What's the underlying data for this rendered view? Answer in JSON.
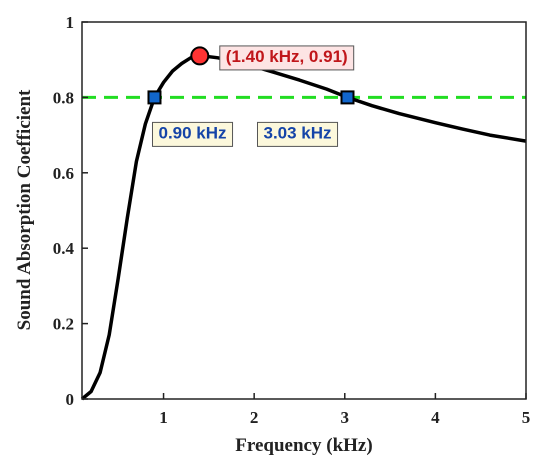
{
  "chart_data": {
    "type": "line",
    "xlabel": "Frequency (kHz)",
    "ylabel": "Sound Absorption Coefficient",
    "xlim": [
      0.1,
      5
    ],
    "ylim": [
      0,
      1
    ],
    "xticks": [
      1,
      2,
      3,
      4,
      5
    ],
    "yticks": [
      0,
      0.2,
      0.4,
      0.6,
      0.8,
      1
    ],
    "xtick_labels": [
      "1",
      "2",
      "3",
      "4",
      "5"
    ],
    "ytick_labels": [
      "0",
      "0.2",
      "0.4",
      "0.6",
      "0.8",
      "1"
    ],
    "grid": false,
    "series": [
      {
        "color": "#000000",
        "x": [
          0.1,
          0.2,
          0.3,
          0.4,
          0.5,
          0.6,
          0.7,
          0.8,
          0.9,
          1.0,
          1.1,
          1.2,
          1.3,
          1.4,
          1.5,
          1.6,
          1.8,
          2.0,
          2.2,
          2.5,
          2.8,
          3.03,
          3.3,
          3.6,
          4.0,
          4.3,
          4.6,
          5.0
        ],
        "y": [
          0.0,
          0.02,
          0.07,
          0.17,
          0.32,
          0.48,
          0.63,
          0.73,
          0.8,
          0.84,
          0.87,
          0.89,
          0.905,
          0.91,
          0.908,
          0.905,
          0.895,
          0.882,
          0.868,
          0.846,
          0.822,
          0.8,
          0.778,
          0.757,
          0.733,
          0.716,
          0.7,
          0.684
        ]
      }
    ],
    "threshold_line": {
      "y": 0.8,
      "color": "#22dd22",
      "style": "dashed"
    },
    "peak_marker": {
      "x": 1.4,
      "y": 0.91,
      "color": "#ff3333"
    },
    "crossing_markers": [
      {
        "x": 0.9,
        "y": 0.8,
        "color": "#1166cc"
      },
      {
        "x": 3.03,
        "y": 0.8,
        "color": "#1166cc"
      }
    ],
    "annotations": {
      "peak": {
        "text": "(1.40 kHz, 0.91)",
        "color": "#c0161a",
        "background": "#fde4e4"
      },
      "left_crossing": {
        "text": "0.90 kHz",
        "color": "#1544a8",
        "background": "#fcf8dc"
      },
      "right_crossing": {
        "text": "3.03 kHz",
        "color": "#1544a8",
        "background": "#fcf8dc"
      }
    }
  }
}
